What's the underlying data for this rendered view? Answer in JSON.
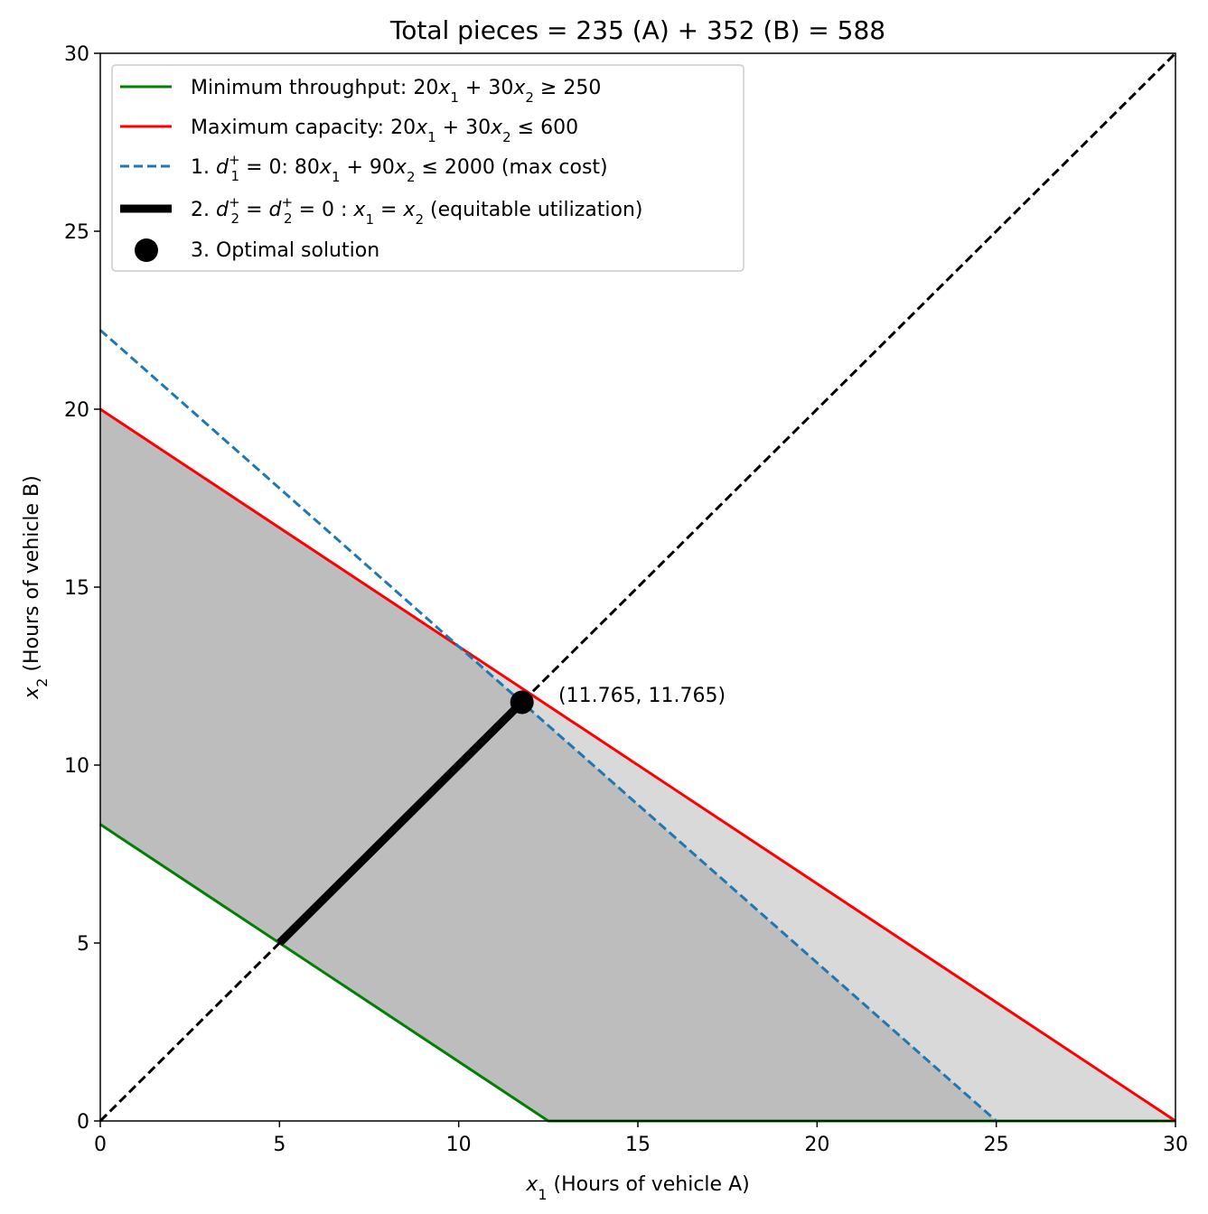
{
  "chart_data": {
    "type": "line",
    "title": "Total pieces = 235 (A) + 352 (B) = 588",
    "xlabel": "x₁ (Hours of vehicle A)",
    "ylabel": "x₂ (Hours of vehicle B)",
    "xlim": [
      0,
      30
    ],
    "ylim": [
      0,
      30
    ],
    "xticks": [
      0,
      5,
      10,
      15,
      20,
      25,
      30
    ],
    "yticks": [
      0,
      5,
      10,
      15,
      20,
      25,
      30
    ],
    "grid": false,
    "legend_position": "top-left",
    "regions": [
      {
        "name": "light-region",
        "color": "#d9d9d9",
        "points": [
          [
            0,
            22.222
          ],
          [
            0,
            8.333
          ],
          [
            12.5,
            0
          ],
          [
            30,
            0
          ],
          [
            0,
            20
          ]
        ]
      },
      {
        "name": "dark-region",
        "color": "#bdbdbd",
        "points": [
          [
            0,
            20
          ],
          [
            0,
            8.333
          ],
          [
            12.5,
            0
          ],
          [
            25,
            0
          ],
          [
            10,
            13.333
          ]
        ]
      }
    ],
    "series": [
      {
        "name": "Minimum throughput: 20x₁ + 30x₂ ≥ 250",
        "color": "#008000",
        "style": "solid",
        "x": [
          0,
          12.5,
          30
        ],
        "y": [
          8.333,
          0,
          0
        ]
      },
      {
        "name": "Maximum capacity: 20x₁ + 30x₂ ≤ 600",
        "color": "#ff0000",
        "style": "solid",
        "x": [
          0,
          30
        ],
        "y": [
          20,
          0
        ]
      },
      {
        "name": "1. d₁⁺ = 0: 80x₁ + 90x₂ ≤ 2000 (max cost)",
        "color": "#1f77b4",
        "style": "dashed",
        "x": [
          0,
          25
        ],
        "y": [
          22.222,
          0
        ]
      },
      {
        "color": "#000000",
        "style": "dashed",
        "x": [
          0,
          30
        ],
        "y": [
          0,
          30
        ]
      },
      {
        "name": "2. d₂⁺ = d₂⁺ = 0 : x₁ = x₂ (equitable utilization)",
        "color": "#000000",
        "style": "thick",
        "x": [
          5,
          11.765
        ],
        "y": [
          5,
          11.765
        ]
      }
    ],
    "points": [
      {
        "name": "3. Optimal solution",
        "x": 11.765,
        "y": 11.765,
        "label": "(11.765, 11.765)"
      }
    ]
  },
  "legend": {
    "min_throughput": {
      "pre": "Minimum throughput: 20",
      "mid1": " + 30",
      "post": " ≥ 250"
    },
    "max_capacity": {
      "pre": "Maximum capacity: 20",
      "mid1": " + 30",
      "post": " ≤ 600"
    },
    "max_cost": {
      "pre": "1. ",
      "mid0": " = 0: 80",
      "mid1": " + 90",
      "post": " ≤ 2000 (max cost)"
    },
    "equitable": {
      "pre": "2. ",
      "mid0": " = ",
      "mid1": " = 0 : ",
      "mid2": " = ",
      "post": " (equitable utilization)"
    },
    "optimal": "3. Optimal solution"
  },
  "symbols": {
    "x": "x",
    "d": "d",
    "sub1": "1",
    "sub2": "2",
    "plus": "+"
  },
  "axis_label_suffix": {
    "x": " (Hours of vehicle A)",
    "y": " (Hours of vehicle B)"
  }
}
